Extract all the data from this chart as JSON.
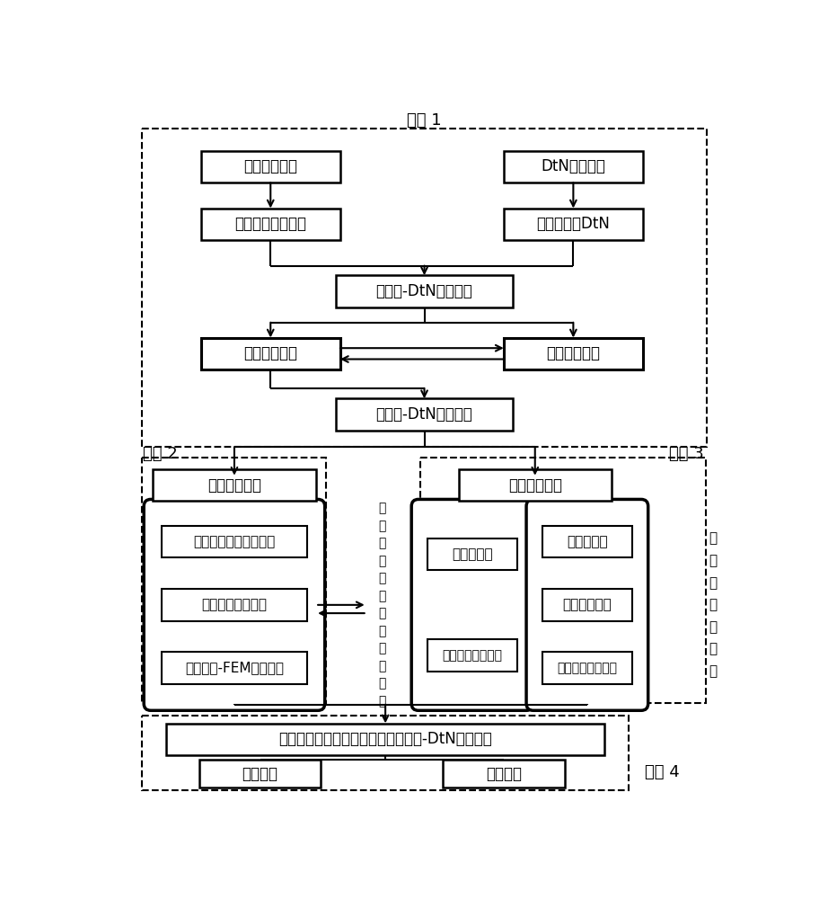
{
  "title_1": "内容 1",
  "title_2": "内容 2",
  "title_3": "内容 3",
  "title_4": "内容 4",
  "font_size": 12,
  "small_font_size": 11,
  "tiny_font_size": 10,
  "bg_color": "#ffffff"
}
